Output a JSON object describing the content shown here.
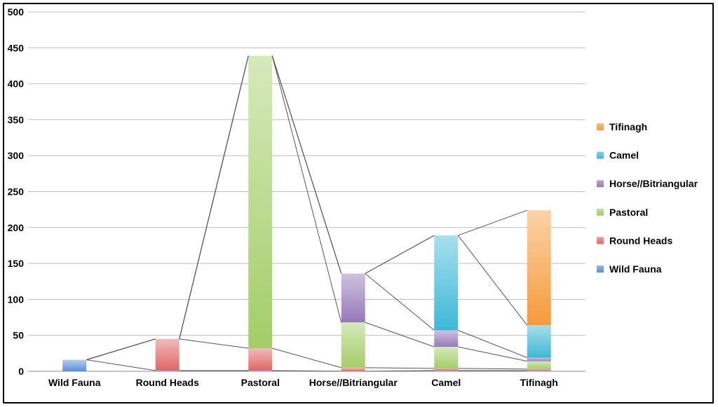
{
  "chart_data": {
    "type": "bar",
    "stacked": true,
    "categories": [
      "Wild Fauna",
      "Round Heads",
      "Pastoral",
      "Horse//Bitriangular",
      "Camel",
      "Tifinagh"
    ],
    "series": [
      {
        "name": "Wild Fauna",
        "values": [
          16,
          1,
          1,
          0,
          1,
          1
        ],
        "color": "#5b8fd6"
      },
      {
        "name": "Round Heads",
        "values": [
          0,
          44,
          31,
          5,
          3,
          2
        ],
        "color": "#e06666"
      },
      {
        "name": "Pastoral",
        "values": [
          0,
          0,
          407,
          63,
          30,
          11
        ],
        "color": "#a3cd67"
      },
      {
        "name": "Horse//Bitriangular",
        "values": [
          0,
          0,
          0,
          68,
          23,
          5
        ],
        "color": "#9479b8"
      },
      {
        "name": "Camel",
        "values": [
          0,
          0,
          0,
          0,
          132,
          45
        ],
        "color": "#3db8d8"
      },
      {
        "name": "Tifinagh",
        "values": [
          0,
          0,
          0,
          0,
          0,
          160
        ],
        "color": "#f59a3c"
      }
    ],
    "ylim": [
      0,
      500
    ],
    "yticks": [
      0,
      50,
      100,
      150,
      200,
      250,
      300,
      350,
      400,
      450,
      500
    ],
    "grid": true,
    "legend": {
      "placement": "right",
      "order": [
        "Tifinagh",
        "Camel",
        "Horse//Bitriangular",
        "Pastoral",
        "Round Heads",
        "Wild Fauna"
      ]
    },
    "connector_lines": true
  }
}
